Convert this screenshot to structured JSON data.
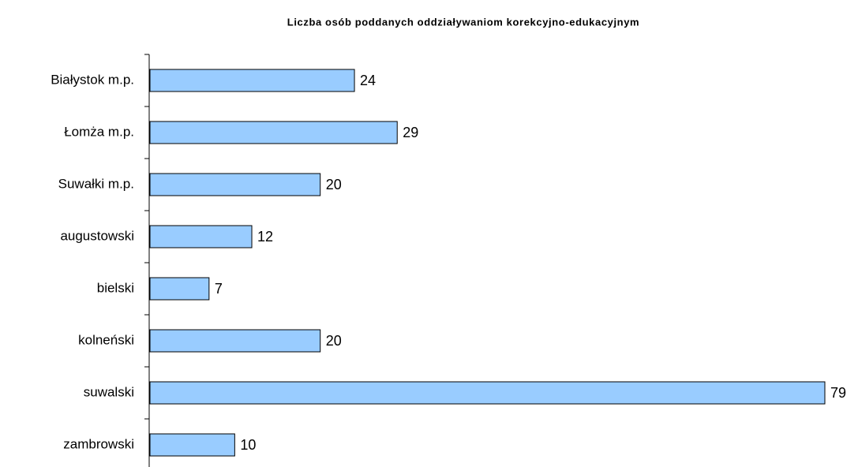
{
  "chart_data": {
    "type": "barh",
    "title": "Liczba osób poddanych oddziaływaniom korekcyjno-edukacyjnym",
    "categories": [
      "Białystok m.p.",
      "Łomża m.p.",
      "Suwałki m.p.",
      "augustowski",
      "bielski",
      "kolneński",
      "suwalski",
      "zambrowski"
    ],
    "values": [
      24,
      29,
      20,
      12,
      7,
      20,
      79,
      10
    ],
    "color": "#99ccff"
  }
}
